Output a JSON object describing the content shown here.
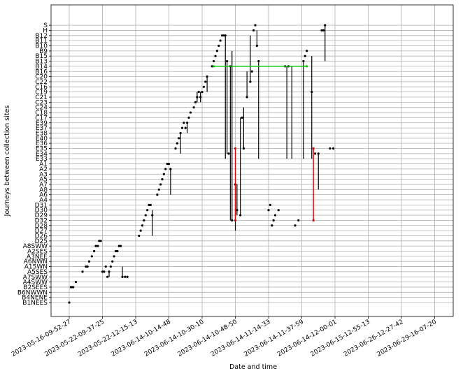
{
  "chart_data": {
    "type": "scatter",
    "xlabel": "Date and time",
    "ylabel": "Journeys between collection sites",
    "x_ticks": [
      "2023-05-16-09-52-27",
      "2023-05-22-09-37-25",
      "2023-05-22-12-15-13",
      "2023-06-14-10-14-48",
      "2023-06-14-10-30-10",
      "2023-06-14-10-48-50",
      "2023-06-14-11-14-33",
      "2023-06-14-11-37-59",
      "2023-06-14-12-00-01",
      "2023-06-15-12-55-13",
      "2023-06-26-12-27-42",
      "2023-06-29-16-07-20"
    ],
    "y_categories": [
      "B1NEES",
      "B4NENE",
      "B6NWWN",
      "B2SEES",
      "A4SWW",
      "A7SWW",
      "A5SES",
      "A15WN",
      "A6NWN",
      "A3NEE",
      "A2SES",
      "A8SWW",
      "D25",
      "D26",
      "D27",
      "D28",
      "D32",
      "D29",
      "D30",
      "D31",
      "A4",
      "A6",
      "A8",
      "A7",
      "A5",
      "A3",
      "A2",
      "A1",
      "E33",
      "E34",
      "E35",
      "E36",
      "E40",
      "E38",
      "E37",
      "E39",
      "C17",
      "C18",
      "C24",
      "C23",
      "C21",
      "C19",
      "C16",
      "C22",
      "C20",
      "B16",
      "B14",
      "B13",
      "B15",
      "B9",
      "B10",
      "B11",
      "B12",
      "H",
      "S"
    ],
    "grid": true,
    "series": [
      {
        "color": "#000000",
        "points": [
          [
            0,
            0
          ],
          [
            0.05,
            3
          ],
          [
            0.08,
            3
          ],
          [
            0.12,
            3
          ],
          [
            0.2,
            4
          ],
          [
            0.4,
            6
          ],
          [
            0.5,
            7
          ],
          [
            0.55,
            7
          ],
          [
            0.6,
            8
          ],
          [
            0.68,
            9
          ],
          [
            0.75,
            10
          ],
          [
            0.8,
            11
          ],
          [
            0.86,
            11
          ],
          [
            0.9,
            12
          ],
          [
            0.95,
            12
          ],
          [
            1.0,
            6
          ],
          [
            1.05,
            6
          ],
          [
            1.1,
            7
          ],
          [
            1.15,
            5
          ],
          [
            1.2,
            6
          ],
          [
            1.25,
            7
          ],
          [
            1.3,
            8
          ],
          [
            1.35,
            9
          ],
          [
            1.4,
            10
          ],
          [
            1.45,
            10
          ],
          [
            1.5,
            11
          ],
          [
            1.55,
            11
          ],
          [
            1.6,
            5
          ],
          [
            1.68,
            5
          ],
          [
            1.75,
            5
          ],
          [
            2.1,
            13
          ],
          [
            2.15,
            14
          ],
          [
            2.2,
            15
          ],
          [
            2.25,
            16
          ],
          [
            2.3,
            17
          ],
          [
            2.35,
            18
          ],
          [
            2.4,
            19
          ],
          [
            2.45,
            19
          ],
          [
            2.5,
            17
          ],
          [
            2.65,
            21
          ],
          [
            2.7,
            22
          ],
          [
            2.75,
            23
          ],
          [
            2.8,
            24
          ],
          [
            2.85,
            25
          ],
          [
            2.9,
            26
          ],
          [
            2.95,
            27
          ],
          [
            3.0,
            27
          ],
          [
            3.05,
            26
          ],
          [
            3.2,
            30
          ],
          [
            3.25,
            31
          ],
          [
            3.3,
            32
          ],
          [
            3.35,
            33
          ],
          [
            3.4,
            34
          ],
          [
            3.45,
            35
          ],
          [
            3.5,
            34
          ],
          [
            3.55,
            35
          ],
          [
            3.6,
            36
          ],
          [
            3.65,
            37
          ],
          [
            3.75,
            38
          ],
          [
            3.8,
            39
          ],
          [
            3.85,
            40
          ],
          [
            3.9,
            41
          ],
          [
            3.95,
            40
          ],
          [
            4.0,
            41
          ],
          [
            4.05,
            42
          ],
          [
            4.1,
            43
          ],
          [
            4.15,
            44
          ],
          [
            4.3,
            46
          ],
          [
            4.35,
            47
          ],
          [
            4.4,
            48
          ],
          [
            4.45,
            49
          ],
          [
            4.5,
            50
          ],
          [
            4.55,
            51
          ],
          [
            4.6,
            52
          ],
          [
            4.65,
            52
          ],
          [
            4.7,
            52
          ],
          [
            4.75,
            47
          ],
          [
            4.8,
            29
          ],
          [
            4.85,
            46
          ],
          [
            4.9,
            16
          ],
          [
            5.0,
            23
          ],
          [
            5.05,
            18
          ],
          [
            5.15,
            17
          ],
          [
            5.2,
            36
          ],
          [
            5.25,
            30
          ],
          [
            5.35,
            40
          ],
          [
            5.45,
            43
          ],
          [
            5.5,
            45
          ],
          [
            5.55,
            53
          ],
          [
            5.6,
            54
          ],
          [
            5.65,
            50
          ],
          [
            5.7,
            47
          ],
          [
            6.0,
            18
          ],
          [
            6.05,
            19
          ],
          [
            6.1,
            15
          ],
          [
            6.15,
            16
          ],
          [
            6.2,
            17
          ],
          [
            6.3,
            18
          ],
          [
            6.5,
            46
          ],
          [
            6.6,
            46
          ],
          [
            6.8,
            15
          ],
          [
            6.9,
            16
          ],
          [
            7.05,
            47
          ],
          [
            7.1,
            48
          ],
          [
            7.15,
            49
          ],
          [
            7.3,
            41
          ],
          [
            7.4,
            29
          ],
          [
            7.5,
            29
          ],
          [
            7.6,
            53
          ],
          [
            7.65,
            53
          ],
          [
            7.7,
            54
          ],
          [
            7.85,
            30
          ],
          [
            7.95,
            30
          ]
        ]
      },
      {
        "color": "#00cc00",
        "points": [
          [
            4.35,
            46
          ],
          [
            7.15,
            46
          ]
        ]
      },
      {
        "color": "#dd0000",
        "points": [
          [
            5.0,
            30
          ],
          [
            5.0,
            16
          ],
          [
            7.35,
            30
          ],
          [
            7.35,
            16
          ]
        ]
      }
    ],
    "segments": [
      {
        "color": "#000000",
        "x": 1.2,
        "y1": 6,
        "y2": 5
      },
      {
        "color": "#000000",
        "x": 1.6,
        "y1": 7,
        "y2": 5
      },
      {
        "color": "#000000",
        "x": 2.5,
        "y1": 18,
        "y2": 13
      },
      {
        "color": "#000000",
        "x": 3.05,
        "y1": 26,
        "y2": 21
      },
      {
        "color": "#000000",
        "x": 3.35,
        "y1": 33,
        "y2": 29
      },
      {
        "color": "#000000",
        "x": 3.55,
        "y1": 35,
        "y2": 33
      },
      {
        "color": "#000000",
        "x": 3.85,
        "y1": 41,
        "y2": 39
      },
      {
        "color": "#000000",
        "x": 3.95,
        "y1": 41,
        "y2": 39
      },
      {
        "color": "#000000",
        "x": 4.15,
        "y1": 44,
        "y2": 41
      },
      {
        "color": "#000000",
        "x": 4.7,
        "y1": 52,
        "y2": 28
      },
      {
        "color": "#000000",
        "x": 4.75,
        "y1": 47,
        "y2": 29
      },
      {
        "color": "#000000",
        "x": 4.85,
        "y1": 46,
        "y2": 16
      },
      {
        "color": "#000000",
        "x": 4.9,
        "y1": 49,
        "y2": 16
      },
      {
        "color": "#000000",
        "x": 5.0,
        "y1": 23,
        "y2": 14
      },
      {
        "color": "#000000",
        "x": 5.05,
        "y1": 23,
        "y2": 17
      },
      {
        "color": "#000000",
        "x": 5.15,
        "y1": 36,
        "y2": 17
      },
      {
        "color": "#000000",
        "x": 5.25,
        "y1": 38,
        "y2": 30
      },
      {
        "color": "#000000",
        "x": 5.35,
        "y1": 45,
        "y2": 40
      },
      {
        "color": "#000000",
        "x": 5.45,
        "y1": 52,
        "y2": 43
      },
      {
        "color": "#000000",
        "x": 5.65,
        "y1": 53,
        "y2": 50
      },
      {
        "color": "#000000",
        "x": 5.7,
        "y1": 47,
        "y2": 28
      },
      {
        "color": "#000000",
        "x": 6.55,
        "y1": 46,
        "y2": 28
      },
      {
        "color": "#000000",
        "x": 6.7,
        "y1": 46,
        "y2": 28
      },
      {
        "color": "#000000",
        "x": 7.05,
        "y1": 47,
        "y2": 28
      },
      {
        "color": "#000000",
        "x": 7.3,
        "y1": 48,
        "y2": 28
      },
      {
        "color": "#000000",
        "x": 7.5,
        "y1": 29,
        "y2": 22
      },
      {
        "color": "#000000",
        "x": 7.7,
        "y1": 54,
        "y2": 47
      }
    ]
  }
}
